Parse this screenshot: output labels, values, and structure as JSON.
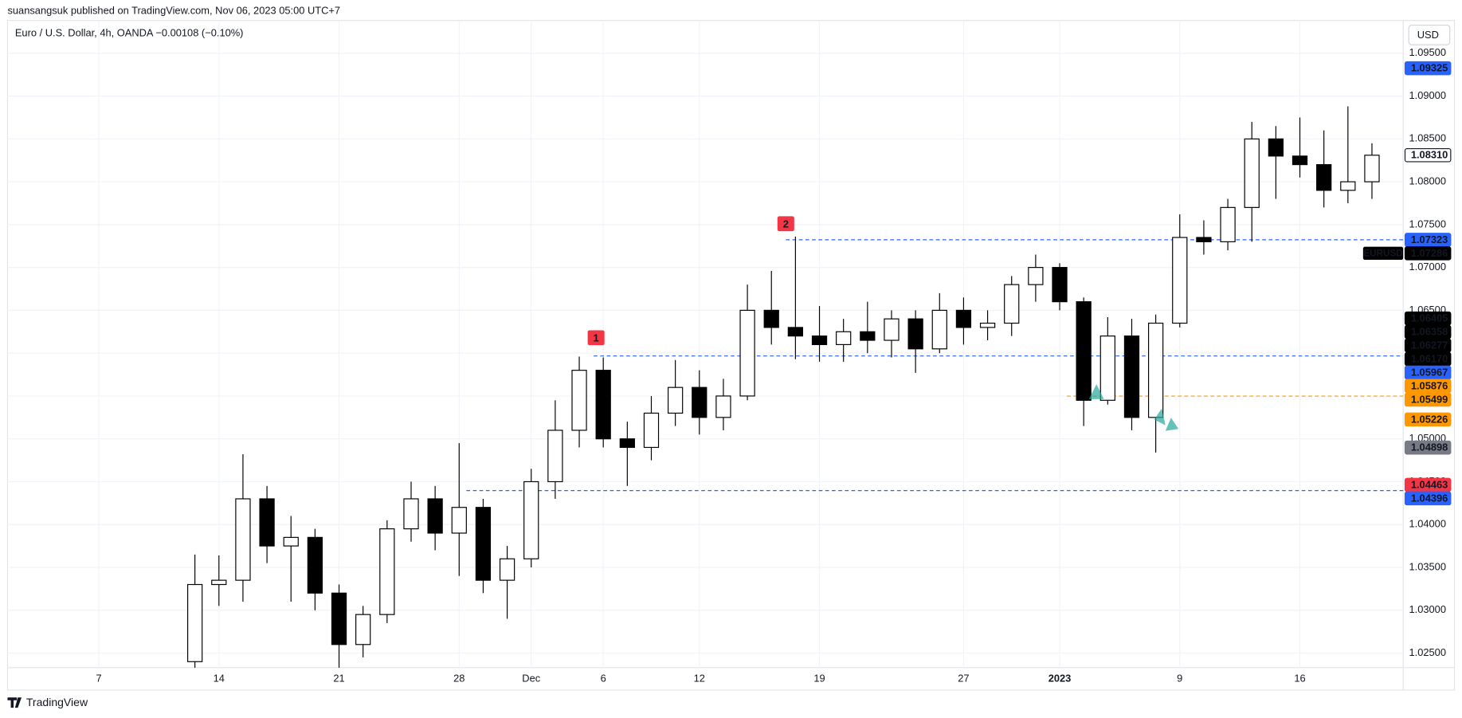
{
  "chart_data": {
    "type": "candlestick",
    "header": "suansangsuk published on TradingView.com, Nov 06, 2023 05:00 UTC+7",
    "symbol_line": "Euro / U.S. Dollar, 4h, OANDA  −0.00108 (−0.10%)",
    "currency": "USD",
    "symbol": "EURUSD",
    "brand": "TradingView",
    "up_color": "#ffffff",
    "down_color": "#000000",
    "wick_color": "#000000",
    "grid": true,
    "xlim": [
      -3.8,
      54.3
    ],
    "ylim": [
      1.0233,
      1.0949
    ],
    "xticks": [
      {
        "value": 0,
        "label": "7"
      },
      {
        "value": 5,
        "label": "14"
      },
      {
        "value": 10,
        "label": "21"
      },
      {
        "value": 15,
        "label": "28"
      },
      {
        "value": 18,
        "label": "Dec"
      },
      {
        "value": 21,
        "label": "6"
      },
      {
        "value": 25,
        "label": "12"
      },
      {
        "value": 30,
        "label": "19"
      },
      {
        "value": 36,
        "label": "27"
      },
      {
        "value": 40,
        "label": "2023",
        "bold": true
      },
      {
        "value": 45,
        "label": "9"
      },
      {
        "value": 50,
        "label": "16"
      }
    ],
    "yticks": [
      {
        "value": 1.025,
        "label": "1.02500"
      },
      {
        "value": 1.03,
        "label": "1.03000"
      },
      {
        "value": 1.035,
        "label": "1.03500"
      },
      {
        "value": 1.04,
        "label": "1.04000"
      },
      {
        "value": 1.045,
        "label": "1.04500"
      },
      {
        "value": 1.05,
        "label": "1.05000"
      },
      {
        "value": 1.055,
        "label": "1.05500"
      },
      {
        "value": 1.06,
        "label": "1.06000"
      },
      {
        "value": 1.065,
        "label": "1.06500"
      },
      {
        "value": 1.07,
        "label": "1.07000"
      },
      {
        "value": 1.075,
        "label": "1.07500"
      },
      {
        "value": 1.08,
        "label": "1.08000"
      },
      {
        "value": 1.085,
        "label": "1.08500"
      },
      {
        "value": 1.09,
        "label": "1.09000"
      },
      {
        "value": 1.095,
        "label": "1.09500"
      }
    ],
    "x": [
      4,
      5,
      6,
      7,
      8,
      9,
      10,
      11,
      12,
      13,
      14,
      15,
      16,
      17,
      18,
      19,
      20,
      21,
      22,
      23,
      24,
      25,
      26,
      27,
      28,
      29,
      30,
      31,
      32,
      33,
      34,
      35,
      36,
      37,
      38,
      39,
      40,
      41,
      42,
      43,
      44,
      45,
      46,
      47,
      48,
      49,
      50,
      51,
      52,
      53
    ],
    "open": [
      1.024,
      1.033,
      1.0335,
      1.043,
      1.0375,
      1.0385,
      1.032,
      1.026,
      1.0295,
      1.0395,
      1.043,
      1.039,
      1.042,
      1.0335,
      1.036,
      1.045,
      1.051,
      1.058,
      1.05,
      1.049,
      1.053,
      1.056,
      1.0525,
      1.055,
      1.065,
      1.063,
      1.062,
      1.061,
      1.0625,
      1.0615,
      1.064,
      1.0605,
      1.065,
      1.063,
      1.0635,
      1.068,
      1.07,
      1.066,
      1.0545,
      1.062,
      1.0525,
      1.0635,
      1.0735,
      1.073,
      1.077,
      1.085,
      1.083,
      1.082,
      1.079,
      1.08
    ],
    "high": [
      1.0365,
      1.0364,
      1.0482,
      1.0445,
      1.041,
      1.0395,
      1.033,
      1.0305,
      1.0405,
      1.045,
      1.0445,
      1.0495,
      1.043,
      1.0375,
      1.0465,
      1.0545,
      1.0596,
      1.0595,
      1.052,
      1.055,
      1.0592,
      1.058,
      1.057,
      1.068,
      1.0696,
      1.0736,
      1.0655,
      1.064,
      1.066,
      1.065,
      1.065,
      1.067,
      1.0665,
      1.065,
      1.069,
      1.0715,
      1.0705,
      1.0665,
      1.0642,
      1.064,
      1.0645,
      1.0762,
      1.0755,
      1.078,
      1.087,
      1.0865,
      1.0875,
      1.086,
      1.0888,
      1.0845
    ],
    "low": [
      1.0225,
      1.0305,
      1.031,
      1.0355,
      1.031,
      1.03,
      1.0225,
      1.0245,
      1.0285,
      1.038,
      1.037,
      1.034,
      1.032,
      1.029,
      1.035,
      1.043,
      1.049,
      1.049,
      1.0445,
      1.0475,
      1.0515,
      1.0505,
      1.051,
      1.0545,
      1.061,
      1.0593,
      1.059,
      1.059,
      1.06,
      1.0595,
      1.0577,
      1.06,
      1.061,
      1.0615,
      1.062,
      1.066,
      1.065,
      1.0515,
      1.054,
      1.051,
      1.0484,
      1.063,
      1.0715,
      1.072,
      1.073,
      1.078,
      1.0805,
      1.077,
      1.0775,
      1.078
    ],
    "close": [
      1.033,
      1.0335,
      1.043,
      1.0375,
      1.0385,
      1.032,
      1.026,
      1.0295,
      1.0395,
      1.043,
      1.039,
      1.042,
      1.0335,
      1.036,
      1.045,
      1.051,
      1.058,
      1.05,
      1.049,
      1.053,
      1.056,
      1.0525,
      1.055,
      1.065,
      1.063,
      1.062,
      1.061,
      1.0625,
      1.0615,
      1.064,
      1.0605,
      1.065,
      1.063,
      1.0635,
      1.068,
      1.07,
      1.066,
      1.0545,
      1.062,
      1.0525,
      1.0635,
      1.0735,
      1.073,
      1.077,
      1.085,
      1.083,
      1.082,
      1.079,
      1.08,
      1.0831
    ],
    "price_labels": [
      {
        "value": 1.09325,
        "label": "1.09325",
        "color": "#2962ff"
      },
      {
        "value": 1.0831,
        "label": "1.08310",
        "color": "#ffffff",
        "outline": true
      },
      {
        "value": 1.07323,
        "label": "1.07323",
        "color": "#2962ff",
        "line_from": 28.6
      },
      {
        "value": 1.07286,
        "label": "1.07286",
        "color": "#000000",
        "symbol_tag": true
      },
      {
        "value": 1.06405,
        "label": "1.06405",
        "color": "#000000"
      },
      {
        "value": 1.06358,
        "label": "1.06358",
        "color": "#000000"
      },
      {
        "value": 1.06277,
        "label": "1.06277",
        "color": "#000000"
      },
      {
        "value": 1.0617,
        "label": "1.06170",
        "color": "#000000"
      },
      {
        "value": 1.05967,
        "label": "1.05967",
        "color": "#2962ff",
        "line_from": 20.6
      },
      {
        "value": 1.05876,
        "label": "1.05876",
        "color": "#ff9800"
      },
      {
        "value": 1.05499,
        "label": "1.05499",
        "color": "#ff9800",
        "line_from": 40.3
      },
      {
        "value": 1.05226,
        "label": "1.05226",
        "color": "#ff9800"
      },
      {
        "value": 1.04898,
        "label": "1.04898",
        "color": "#787b86"
      },
      {
        "value": 1.04463,
        "label": "1.04463",
        "color": "#f23645"
      },
      {
        "value": 1.04396,
        "label": "1.04396",
        "color": "#2962ff",
        "line_from": 15.3
      }
    ],
    "markers": [
      {
        "label": "1",
        "x": 20.7,
        "y": 1.0618,
        "color": "#f23645"
      },
      {
        "label": "2",
        "x": 28.6,
        "y": 1.0751,
        "color": "#f23645"
      }
    ]
  }
}
